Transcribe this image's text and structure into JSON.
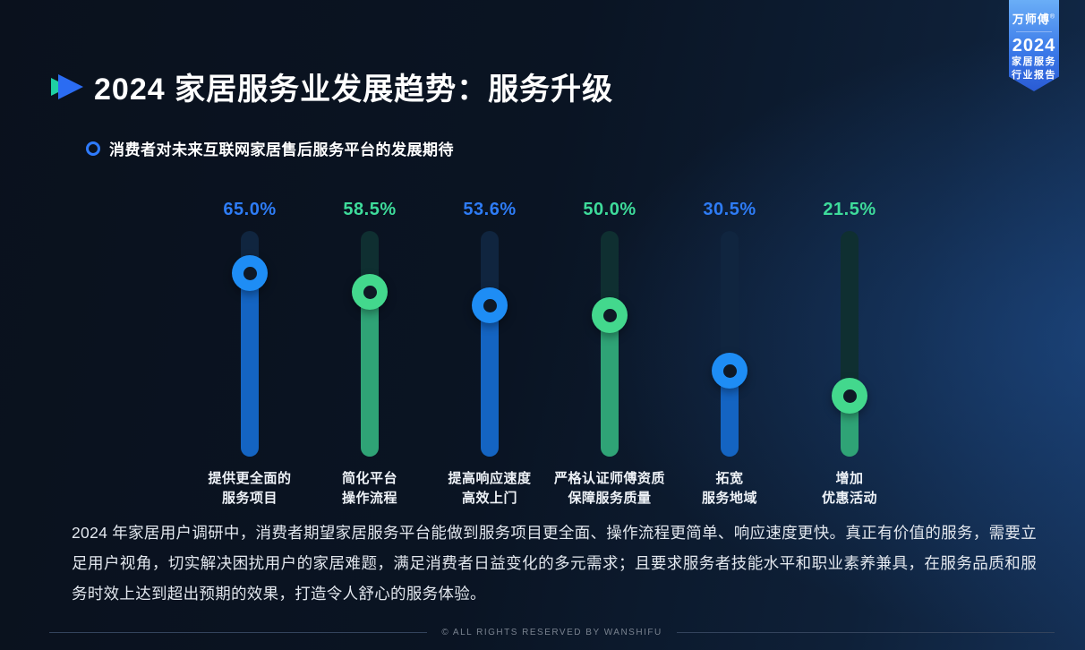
{
  "badge": {
    "brand": "万师傅",
    "reg_mark": "®",
    "year": "2024",
    "line1": "家居服务",
    "line2": "行业报告"
  },
  "header": {
    "title": "2024 家居服务业发展趋势：服务升级"
  },
  "section": {
    "subtitle": "消费者对未来互联网家居售后服务平台的发展期待"
  },
  "chart_data": {
    "type": "bar",
    "subtype": "vertical-slider-bars",
    "title": "消费者对未来互联网家居售后服务平台的发展期待",
    "unit": "%",
    "axis_max": 80,
    "grid": false,
    "legend": false,
    "categories": [
      "提供更全面的服务项目",
      "简化平台操作流程",
      "提高响应速度高效上门",
      "严格认证师傅资质保障服务质量",
      "拓宽服务地域",
      "增加优惠活动"
    ],
    "categories_lines": [
      [
        "提供更全面的",
        "服务项目"
      ],
      [
        "简化平台",
        "操作流程"
      ],
      [
        "提高响应速度",
        "高效上门"
      ],
      [
        "严格认证师傅资质",
        "保障服务质量"
      ],
      [
        "拓宽",
        "服务地域"
      ],
      [
        "增加",
        "优惠活动"
      ]
    ],
    "values": [
      65.0,
      58.5,
      53.6,
      50.0,
      30.5,
      21.5
    ],
    "value_labels": [
      "65.0%",
      "58.5%",
      "53.6%",
      "50.0%",
      "30.5%",
      "21.5%"
    ],
    "colors": [
      "blue",
      "green",
      "blue",
      "green",
      "blue",
      "green"
    ],
    "palette": {
      "blue": {
        "label": "#2e7cf6",
        "knob": "#1e8df5",
        "fill": "#1464c2",
        "track": "#10253f"
      },
      "green": {
        "label": "#3edc9b",
        "knob": "#43d88d",
        "fill": "#2fa376",
        "track": "#0f2f31"
      }
    }
  },
  "theme": {
    "background_dark": "#0a111d",
    "background_blue": "#142f54",
    "title_arrow_teal": "#1fd0a4",
    "title_arrow_blue": "#2b6cf2",
    "subtitle_ring_blue": "#2e7bff",
    "badge_gradient_top": "#6aaef7",
    "badge_gradient_bottom": "#2a5bd4"
  },
  "body_text": "2024 年家居用户调研中，消费者期望家居服务平台能做到服务项目更全面、操作流程更简单、响应速度更快。真正有价值的服务，需要立足用户视角，切实解决困扰用户的家居难题，满足消费者日益变化的多元需求；且要求服务者技能水平和职业素养兼具，在服务品质和服务时效上达到超出预期的效果，打造令人舒心的服务体验。",
  "footer": {
    "copyright": "© ALL RIGHTS RESERVED BY WANSHIFU"
  }
}
